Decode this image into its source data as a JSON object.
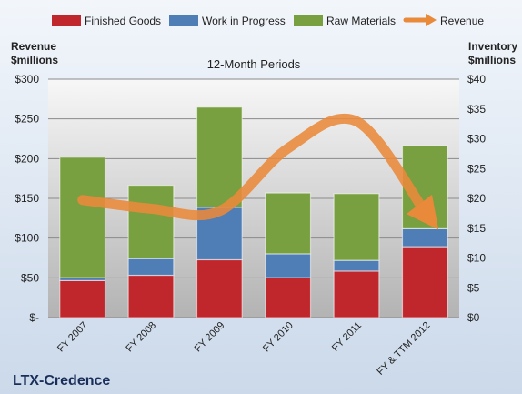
{
  "chart_data": {
    "type": "bar",
    "subtitle": "12-Month Periods",
    "company": "LTX-Credence",
    "categories": [
      "FY 2007",
      "FY 2008",
      "FY 2009",
      "FY 2010",
      "FY 2011",
      "FY & TTM 2012"
    ],
    "series": [
      {
        "name": "Finished Goods",
        "axis": "right",
        "stacked": true,
        "color": "#c0272d",
        "values": [
          6.2,
          7.1,
          9.7,
          6.7,
          7.8,
          11.9
        ]
      },
      {
        "name": "Work in Progress",
        "axis": "right",
        "stacked": true,
        "color": "#4f7db5",
        "values": [
          0.5,
          2.8,
          8.8,
          4.0,
          1.8,
          3.0
        ]
      },
      {
        "name": "Raw Materials",
        "axis": "right",
        "stacked": true,
        "color": "#78a040",
        "values": [
          20.2,
          12.3,
          16.8,
          10.2,
          11.2,
          13.9
        ]
      },
      {
        "name": "Revenue",
        "axis": "left",
        "type": "line",
        "color": "#e9893a",
        "values": [
          148,
          137,
          134,
          213,
          247,
          133
        ]
      }
    ],
    "y_left": {
      "label_line1": "Revenue",
      "label_line2": "$millions",
      "ylim": [
        0,
        300
      ],
      "ticks": [
        "$-",
        "$50",
        "$100",
        "$150",
        "$200",
        "$250",
        "$300"
      ]
    },
    "y_right": {
      "label_line1": "Inventory",
      "label_line2": "$millions",
      "ylim": [
        0,
        40
      ],
      "ticks": [
        "$0",
        "$5",
        "$10",
        "$15",
        "$20",
        "$25",
        "$30",
        "$35",
        "$40"
      ]
    },
    "grid": true,
    "legend_position": "top"
  }
}
